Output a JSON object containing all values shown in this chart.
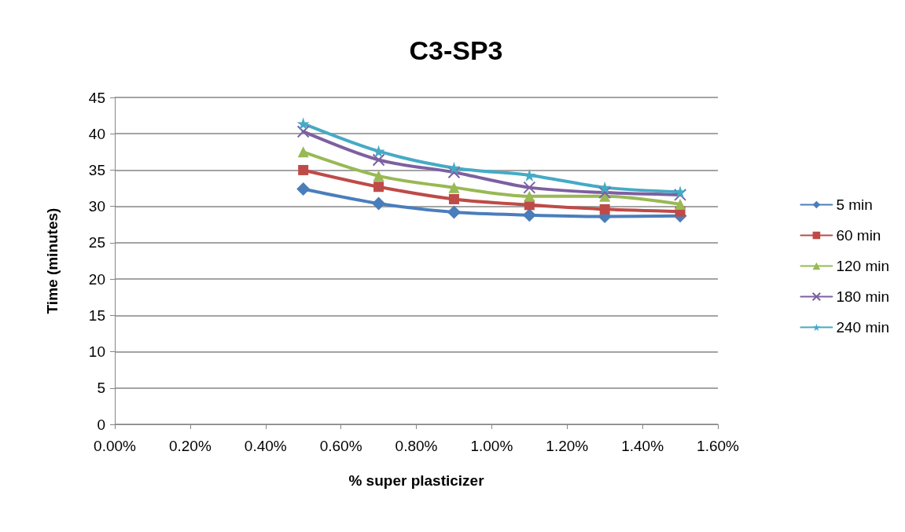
{
  "chart_data": {
    "type": "line",
    "title": "C3-SP3",
    "xlabel": "% super plasticizer",
    "ylabel": "Time (minutes)",
    "x": [
      0.5,
      0.7,
      0.9,
      1.1,
      1.3,
      1.5
    ],
    "xlim": [
      0,
      1.6
    ],
    "xticks": [
      {
        "value": 0,
        "label": "0.00%"
      },
      {
        "value": 0.2,
        "label": "0.20%"
      },
      {
        "value": 0.4,
        "label": "0.40%"
      },
      {
        "value": 0.6,
        "label": "0.60%"
      },
      {
        "value": 0.8,
        "label": "0.80%"
      },
      {
        "value": 1.0,
        "label": "1.00%"
      },
      {
        "value": 1.2,
        "label": "1.20%"
      },
      {
        "value": 1.4,
        "label": "1.40%"
      },
      {
        "value": 1.6,
        "label": "1.60%"
      }
    ],
    "ylim": [
      0,
      45
    ],
    "yticks": [
      0,
      5,
      10,
      15,
      20,
      25,
      30,
      35,
      40,
      45
    ],
    "grid": "y",
    "legend": "right",
    "line_style": "solid",
    "series": [
      {
        "name": "5 min",
        "color": "#4a7ebb",
        "marker": "diamond",
        "values": [
          32.4,
          30.4,
          29.2,
          28.8,
          28.6,
          28.7
        ]
      },
      {
        "name": "60 min",
        "color": "#be4b48",
        "marker": "square",
        "values": [
          35.0,
          32.7,
          31.0,
          30.2,
          29.6,
          29.3
        ]
      },
      {
        "name": "120 min",
        "color": "#98b954",
        "marker": "triangle",
        "values": [
          37.5,
          34.2,
          32.6,
          31.4,
          31.4,
          30.3
        ]
      },
      {
        "name": "180 min",
        "color": "#7d60a0",
        "marker": "cross",
        "values": [
          40.3,
          36.4,
          34.7,
          32.6,
          31.9,
          31.6
        ]
      },
      {
        "name": "240 min",
        "color": "#46aac5",
        "marker": "star",
        "values": [
          41.4,
          37.6,
          35.3,
          34.3,
          32.6,
          32.0
        ]
      }
    ]
  }
}
